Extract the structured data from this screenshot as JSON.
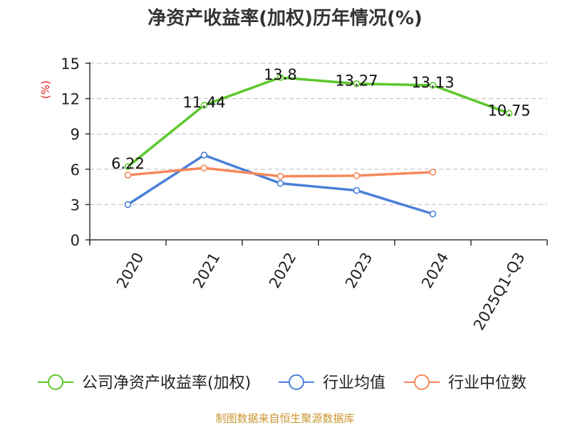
{
  "chart_data": {
    "type": "line",
    "title": "净资产收益率(加权)历年情况(%)",
    "ylabel": "(%)",
    "ylim": [
      0,
      15
    ],
    "yticks": [
      0,
      3,
      6,
      9,
      12,
      15
    ],
    "categories": [
      "2020",
      "2021",
      "2022",
      "2023",
      "2024",
      "2025Q1-Q3"
    ],
    "grid": true,
    "series": [
      {
        "name": "公司净资产收益率(加权)",
        "color": "#5cc72c",
        "values": [
          6.22,
          11.44,
          13.8,
          13.27,
          13.13,
          10.75
        ],
        "labels": [
          "6.22",
          "11.44",
          "13.8",
          "13.27",
          "13.13",
          "10.75"
        ]
      },
      {
        "name": "行业均值",
        "color": "#4a80d8",
        "values": [
          3.0,
          7.2,
          4.8,
          4.2,
          2.2,
          null
        ]
      },
      {
        "name": "行业中位数",
        "color": "#f5885a",
        "values": [
          5.5,
          6.1,
          5.4,
          5.45,
          5.75,
          null
        ]
      }
    ],
    "source": "制图数据来自恒生聚源数据库"
  }
}
